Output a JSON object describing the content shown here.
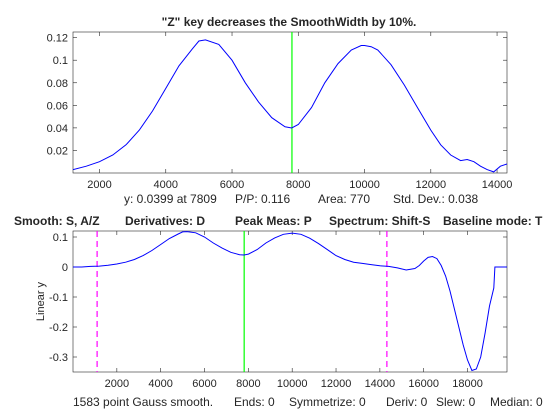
{
  "figure": {
    "title": "\"Z\" key decreases the SmoothWidth by 10%.",
    "readout": {
      "y_text": "y: 0.0399 at 7809",
      "pp_text": "P/P: 0.116",
      "area_text": "Area: 770",
      "std_text": "Std. Dev.: 0.038"
    },
    "controls_line": {
      "smooth": "Smooth: S, A/Z",
      "derivatives": "Derivatives: D",
      "peak": "Peak Meas: P",
      "spectrum": "Spectrum: Shift-S",
      "baseline": "Baseline mode: T"
    },
    "status_line": {
      "smooth": "1583 point Gauss smooth.",
      "ends": "Ends: 0",
      "symmetrize": "Symmetrize: 0",
      "deriv": "Deriv: 0",
      "slew": "Slew: 0",
      "median": "Median: 0"
    }
  },
  "chart_data": [
    {
      "type": "line",
      "title": "\"Z\" key decreases the SmoothWidth by 10%.",
      "xlim": [
        1200,
        14300
      ],
      "ylim": [
        0.0,
        0.125
      ],
      "xticks": [
        2000,
        4000,
        6000,
        8000,
        10000,
        12000,
        14000
      ],
      "xtick_labels": [
        "2000",
        "4000",
        "6000",
        "8000",
        "10000",
        "12000",
        "14000"
      ],
      "yticks": [
        0.02,
        0.04,
        0.06,
        0.08,
        0.1,
        0.12
      ],
      "ytick_labels": [
        "0.02",
        "0.04",
        "0.06",
        "0.08",
        "0.1",
        "0.12"
      ],
      "series": [
        {
          "color": "#0000ff",
          "x": [
            1200,
            1600,
            2000,
            2400,
            2800,
            3200,
            3600,
            4000,
            4400,
            4800,
            5000,
            5200,
            5600,
            6000,
            6400,
            6800,
            7200,
            7600,
            7800,
            8000,
            8400,
            8800,
            9200,
            9600,
            9900,
            10000,
            10200,
            10400,
            10800,
            11200,
            11600,
            12000,
            12300,
            12600,
            12900,
            13100,
            13300,
            13500,
            13700,
            13900,
            14100,
            14300
          ],
          "y": [
            0.003,
            0.006,
            0.01,
            0.016,
            0.025,
            0.038,
            0.055,
            0.075,
            0.095,
            0.11,
            0.117,
            0.118,
            0.114,
            0.1,
            0.08,
            0.063,
            0.049,
            0.041,
            0.0399,
            0.043,
            0.058,
            0.08,
            0.097,
            0.109,
            0.113,
            0.113,
            0.112,
            0.109,
            0.096,
            0.078,
            0.058,
            0.038,
            0.025,
            0.016,
            0.011,
            0.012,
            0.01,
            0.006,
            0.003,
            0.001,
            0.006,
            0.008
          ]
        }
      ],
      "markers": [
        {
          "x": 7809,
          "color": "#00ff00"
        }
      ]
    },
    {
      "type": "line",
      "ylabel": "Linear y",
      "xlim": [
        0,
        19800
      ],
      "ylim": [
        -0.35,
        0.12
      ],
      "xticks": [
        2000,
        4000,
        6000,
        8000,
        10000,
        12000,
        14000,
        16000,
        18000
      ],
      "xtick_labels": [
        "2000",
        "4000",
        "6000",
        "8000",
        "10000",
        "12000",
        "14000",
        "16000",
        "18000"
      ],
      "yticks": [
        -0.3,
        -0.2,
        -0.1,
        0,
        0.1
      ],
      "ytick_labels": [
        "-0.3",
        "-0.2",
        "-0.1",
        "0",
        "0.1"
      ],
      "series": [
        {
          "color": "#0000ff",
          "x": [
            0,
            400,
            800,
            1200,
            1600,
            2000,
            2400,
            2800,
            3200,
            3600,
            4000,
            4400,
            4800,
            5000,
            5200,
            5600,
            6000,
            6400,
            6800,
            7200,
            7600,
            7800,
            8000,
            8400,
            8800,
            9200,
            9600,
            10000,
            10400,
            10800,
            11200,
            11600,
            12000,
            12400,
            12800,
            13200,
            13600,
            14000,
            14400,
            14800,
            15200,
            15600,
            15800,
            16000,
            16200,
            16400,
            16600,
            16800,
            17000,
            17200,
            17400,
            17600,
            17800,
            18000,
            18200,
            18400,
            18600,
            18800,
            19000,
            19200,
            19250,
            19600,
            19800
          ],
          "y": [
            0.0,
            0.0,
            0.002,
            0.003,
            0.006,
            0.01,
            0.016,
            0.025,
            0.038,
            0.055,
            0.075,
            0.095,
            0.11,
            0.117,
            0.118,
            0.114,
            0.1,
            0.08,
            0.063,
            0.049,
            0.041,
            0.0399,
            0.043,
            0.058,
            0.08,
            0.097,
            0.109,
            0.113,
            0.109,
            0.096,
            0.078,
            0.058,
            0.038,
            0.025,
            0.016,
            0.012,
            0.008,
            0.004,
            0.002,
            -0.003,
            -0.01,
            -0.005,
            0.005,
            0.02,
            0.032,
            0.035,
            0.028,
            0.005,
            -0.03,
            -0.08,
            -0.14,
            -0.2,
            -0.26,
            -0.31,
            -0.345,
            -0.34,
            -0.3,
            -0.22,
            -0.13,
            -0.07,
            0.0,
            0.0,
            0.0
          ]
        }
      ],
      "markers": [
        {
          "x": 7809,
          "color": "#00ff00",
          "style": "solid"
        },
        {
          "x": 1100,
          "color": "#ff00ff",
          "style": "dashed"
        },
        {
          "x": 14320,
          "color": "#ff00ff",
          "style": "dashed"
        }
      ]
    }
  ]
}
